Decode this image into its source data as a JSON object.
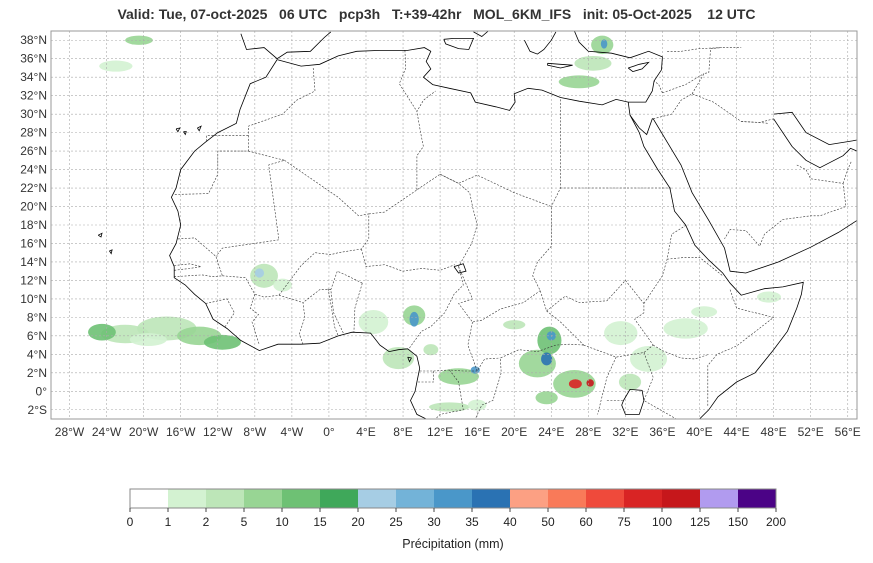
{
  "title": "Valid: Tue, 07-oct-2025   06 UTC   pcp3h   T:+39-42hr   MOL_6KM_IFS   init: 05-Oct-2025    12 UTC",
  "map": {
    "lon_range": [
      -30,
      57
    ],
    "lat_range": [
      -3,
      39
    ],
    "lat_ticks": [
      {
        "v": 38,
        "label": "38°N"
      },
      {
        "v": 36,
        "label": "36°N"
      },
      {
        "v": 34,
        "label": "34°N"
      },
      {
        "v": 32,
        "label": "32°N"
      },
      {
        "v": 30,
        "label": "30°N"
      },
      {
        "v": 28,
        "label": "28°N"
      },
      {
        "v": 26,
        "label": "26°N"
      },
      {
        "v": 24,
        "label": "24°N"
      },
      {
        "v": 22,
        "label": "22°N"
      },
      {
        "v": 20,
        "label": "20°N"
      },
      {
        "v": 18,
        "label": "18°N"
      },
      {
        "v": 16,
        "label": "16°N"
      },
      {
        "v": 14,
        "label": "14°N"
      },
      {
        "v": 12,
        "label": "12°N"
      },
      {
        "v": 10,
        "label": "10°N"
      },
      {
        "v": 8,
        "label": "8°N"
      },
      {
        "v": 6,
        "label": "6°N"
      },
      {
        "v": 4,
        "label": "4°N"
      },
      {
        "v": 2,
        "label": "2°N"
      },
      {
        "v": 0,
        "label": "0°"
      },
      {
        "v": -2,
        "label": "2°S"
      }
    ],
    "lon_ticks": [
      {
        "v": -28,
        "label": "28°W"
      },
      {
        "v": -24,
        "label": "24°W"
      },
      {
        "v": -20,
        "label": "20°W"
      },
      {
        "v": -16,
        "label": "16°W"
      },
      {
        "v": -12,
        "label": "12°W"
      },
      {
        "v": -8,
        "label": "8°W"
      },
      {
        "v": -4,
        "label": "4°W"
      },
      {
        "v": 0,
        "label": "0°"
      },
      {
        "v": 4,
        "label": "4°E"
      },
      {
        "v": 8,
        "label": "8°E"
      },
      {
        "v": 12,
        "label": "12°E"
      },
      {
        "v": 16,
        "label": "16°E"
      },
      {
        "v": 20,
        "label": "20°E"
      },
      {
        "v": 24,
        "label": "24°E"
      },
      {
        "v": 28,
        "label": "28°E"
      },
      {
        "v": 32,
        "label": "32°E"
      },
      {
        "v": 36,
        "label": "36°E"
      },
      {
        "v": 40,
        "label": "40°E"
      },
      {
        "v": 44,
        "label": "44°E"
      },
      {
        "v": 48,
        "label": "48°E"
      },
      {
        "v": 52,
        "label": "52°E"
      },
      {
        "v": 56,
        "label": "56°E"
      }
    ],
    "grid": true,
    "coastline_color": "#000000",
    "border_color": "#333333"
  },
  "colorbar": {
    "label": "Précipitation (mm)",
    "bounds": [
      "0",
      "1",
      "2",
      "5",
      "10",
      "15",
      "20",
      "25",
      "30",
      "35",
      "40",
      "50",
      "60",
      "75",
      "100",
      "125",
      "150",
      "200"
    ],
    "colors": [
      "#ffffff",
      "#d3f2d1",
      "#bde6b8",
      "#98d594",
      "#6ec174",
      "#3fa85a",
      "#a6cde4",
      "#73b3d8",
      "#4a97c9",
      "#2a72b3",
      "#fca083",
      "#f97a59",
      "#ef4a3b",
      "#d92424",
      "#c6171b",
      "#b19bef",
      "#4b0386"
    ]
  },
  "precip_blobs": [
    {
      "lon": -22,
      "lat": 6.2,
      "rx": 2.6,
      "ry": 1.0,
      "c": 2
    },
    {
      "lon": -17.5,
      "lat": 6.8,
      "rx": 3.2,
      "ry": 1.3,
      "c": 2
    },
    {
      "lon": -14,
      "lat": 6.0,
      "rx": 2.4,
      "ry": 1.0,
      "c": 3
    },
    {
      "lon": -11.5,
      "lat": 5.3,
      "rx": 2.0,
      "ry": 0.8,
      "c": 4
    },
    {
      "lon": -19.5,
      "lat": 5.6,
      "rx": 2.0,
      "ry": 0.7,
      "c": 1
    },
    {
      "lon": -24.5,
      "lat": 6.4,
      "rx": 1.5,
      "ry": 0.9,
      "c": 4
    },
    {
      "lon": -7,
      "lat": 12.5,
      "rx": 1.5,
      "ry": 1.3,
      "c": 2
    },
    {
      "lon": -7.5,
      "lat": 12.8,
      "rx": 0.5,
      "ry": 0.5,
      "c": 6
    },
    {
      "lon": -5,
      "lat": 11.5,
      "rx": 1.0,
      "ry": 0.7,
      "c": 1
    },
    {
      "lon": -23,
      "lat": 35.2,
      "rx": 1.8,
      "ry": 0.6,
      "c": 1
    },
    {
      "lon": -20.5,
      "lat": 38,
      "rx": 1.5,
      "ry": 0.5,
      "c": 3
    },
    {
      "lon": 4.8,
      "lat": 7.5,
      "rx": 1.6,
      "ry": 1.3,
      "c": 1
    },
    {
      "lon": 9.2,
      "lat": 8.2,
      "rx": 1.2,
      "ry": 1.1,
      "c": 3
    },
    {
      "lon": 9.2,
      "lat": 7.8,
      "rx": 0.5,
      "ry": 0.8,
      "c": 8
    },
    {
      "lon": 7.5,
      "lat": 3.6,
      "rx": 1.7,
      "ry": 1.2,
      "c": 2
    },
    {
      "lon": 14,
      "lat": 1.6,
      "rx": 2.2,
      "ry": 0.9,
      "c": 3
    },
    {
      "lon": 15.8,
      "lat": 2.3,
      "rx": 0.5,
      "ry": 0.4,
      "c": 8
    },
    {
      "lon": 13,
      "lat": -1.7,
      "rx": 2.2,
      "ry": 0.5,
      "c": 2
    },
    {
      "lon": 22.5,
      "lat": 3,
      "rx": 2.0,
      "ry": 1.5,
      "c": 3
    },
    {
      "lon": 23.8,
      "lat": 5.5,
      "rx": 1.3,
      "ry": 1.5,
      "c": 4
    },
    {
      "lon": 24,
      "lat": 6,
      "rx": 0.5,
      "ry": 0.5,
      "c": 8
    },
    {
      "lon": 23.5,
      "lat": 3.5,
      "rx": 0.6,
      "ry": 0.7,
      "c": 9
    },
    {
      "lon": 26.5,
      "lat": 0.8,
      "rx": 2.3,
      "ry": 1.5,
      "c": 3
    },
    {
      "lon": 26.6,
      "lat": 0.8,
      "rx": 0.7,
      "ry": 0.5,
      "c": 13
    },
    {
      "lon": 28.2,
      "lat": 0.9,
      "rx": 0.4,
      "ry": 0.4,
      "c": 14
    },
    {
      "lon": 23.5,
      "lat": -0.7,
      "rx": 1.2,
      "ry": 0.7,
      "c": 3
    },
    {
      "lon": 31.5,
      "lat": 6.3,
      "rx": 1.8,
      "ry": 1.3,
      "c": 1
    },
    {
      "lon": 34.5,
      "lat": 3.5,
      "rx": 2.0,
      "ry": 1.4,
      "c": 1
    },
    {
      "lon": 32.5,
      "lat": 1.0,
      "rx": 1.2,
      "ry": 0.9,
      "c": 2
    },
    {
      "lon": 38.5,
      "lat": 6.8,
      "rx": 2.4,
      "ry": 1.1,
      "c": 1
    },
    {
      "lon": 40.5,
      "lat": 8.6,
      "rx": 1.4,
      "ry": 0.6,
      "c": 1
    },
    {
      "lon": 47.5,
      "lat": 10.2,
      "rx": 1.3,
      "ry": 0.6,
      "c": 1
    },
    {
      "lon": 27,
      "lat": 33.5,
      "rx": 2.2,
      "ry": 0.7,
      "c": 3
    },
    {
      "lon": 28.5,
      "lat": 35.5,
      "rx": 2.0,
      "ry": 0.8,
      "c": 2
    },
    {
      "lon": 29.5,
      "lat": 37.5,
      "rx": 1.2,
      "ry": 1.0,
      "c": 3
    },
    {
      "lon": 29.7,
      "lat": 37.6,
      "rx": 0.35,
      "ry": 0.5,
      "c": 8
    },
    {
      "lon": 16,
      "lat": -1.5,
      "rx": 1.0,
      "ry": 0.6,
      "c": 1
    },
    {
      "lon": 20,
      "lat": 7.2,
      "rx": 1.2,
      "ry": 0.5,
      "c": 2
    },
    {
      "lon": 11,
      "lat": 4.5,
      "rx": 0.8,
      "ry": 0.6,
      "c": 2
    }
  ]
}
